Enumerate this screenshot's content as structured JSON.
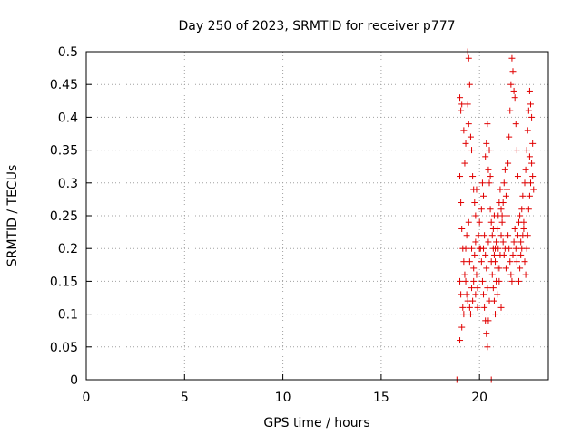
{
  "chart_data": {
    "type": "scatter",
    "title": "Day 250 of 2023, SRMTID for receiver p777",
    "xlabel": "GPS time / hours",
    "ylabel": "SRMTID / TECUs",
    "xlim": [
      0,
      23.5
    ],
    "ylim": [
      0,
      0.5
    ],
    "xticks": [
      "0",
      "5",
      "10",
      "15",
      "20"
    ],
    "yticks": [
      "0",
      "0.05",
      "0.1",
      "0.15",
      "0.2",
      "0.25",
      "0.3",
      "0.35",
      "0.4",
      "0.45",
      "0.5"
    ],
    "grid": true,
    "marker": "+",
    "color": "#e00000",
    "series": [
      {
        "name": "SRMTID",
        "points": [
          [
            18.85,
            0.0
          ],
          [
            18.9,
            0.0
          ],
          [
            20.6,
            0.0
          ],
          [
            19.0,
            0.43
          ],
          [
            19.05,
            0.41
          ],
          [
            19.1,
            0.42
          ],
          [
            19.2,
            0.38
          ],
          [
            19.3,
            0.36
          ],
          [
            19.25,
            0.33
          ],
          [
            19.4,
            0.5
          ],
          [
            19.45,
            0.49
          ],
          [
            19.5,
            0.45
          ],
          [
            19.4,
            0.42
          ],
          [
            19.45,
            0.39
          ],
          [
            19.55,
            0.37
          ],
          [
            19.6,
            0.35
          ],
          [
            19.65,
            0.31
          ],
          [
            19.7,
            0.29
          ],
          [
            19.75,
            0.27
          ],
          [
            19.8,
            0.25
          ],
          [
            19.85,
            0.29
          ],
          [
            19.0,
            0.31
          ],
          [
            19.05,
            0.27
          ],
          [
            19.1,
            0.23
          ],
          [
            19.15,
            0.2
          ],
          [
            19.2,
            0.18
          ],
          [
            19.25,
            0.16
          ],
          [
            19.3,
            0.15
          ],
          [
            19.35,
            0.13
          ],
          [
            19.4,
            0.12
          ],
          [
            19.5,
            0.11
          ],
          [
            19.55,
            0.1
          ],
          [
            19.6,
            0.14
          ],
          [
            19.65,
            0.12
          ],
          [
            19.7,
            0.17
          ],
          [
            19.75,
            0.19
          ],
          [
            19.8,
            0.21
          ],
          [
            19.85,
            0.16
          ],
          [
            19.9,
            0.14
          ],
          [
            19.95,
            0.22
          ],
          [
            20.0,
            0.24
          ],
          [
            20.05,
            0.2
          ],
          [
            20.1,
            0.18
          ],
          [
            20.15,
            0.15
          ],
          [
            20.2,
            0.13
          ],
          [
            20.25,
            0.11
          ],
          [
            20.3,
            0.09
          ],
          [
            20.35,
            0.07
          ],
          [
            20.4,
            0.05
          ],
          [
            20.45,
            0.09
          ],
          [
            20.5,
            0.12
          ],
          [
            19.0,
            0.15
          ],
          [
            19.05,
            0.13
          ],
          [
            19.1,
            0.08
          ],
          [
            19.0,
            0.06
          ],
          [
            19.15,
            0.11
          ],
          [
            19.2,
            0.1
          ],
          [
            19.3,
            0.2
          ],
          [
            19.35,
            0.22
          ],
          [
            19.45,
            0.24
          ],
          [
            19.5,
            0.18
          ],
          [
            19.6,
            0.2
          ],
          [
            19.7,
            0.15
          ],
          [
            19.8,
            0.13
          ],
          [
            19.9,
            0.11
          ],
          [
            20.0,
            0.2
          ],
          [
            20.1,
            0.26
          ],
          [
            20.15,
            0.3
          ],
          [
            20.2,
            0.28
          ],
          [
            20.3,
            0.34
          ],
          [
            20.35,
            0.36
          ],
          [
            20.4,
            0.39
          ],
          [
            20.45,
            0.32
          ],
          [
            20.5,
            0.3
          ],
          [
            20.55,
            0.26
          ],
          [
            20.6,
            0.24
          ],
          [
            20.65,
            0.22
          ],
          [
            20.7,
            0.2
          ],
          [
            20.75,
            0.19
          ],
          [
            20.8,
            0.18
          ],
          [
            20.85,
            0.21
          ],
          [
            20.9,
            0.23
          ],
          [
            20.95,
            0.2
          ],
          [
            21.0,
            0.17
          ],
          [
            21.05,
            0.19
          ],
          [
            21.1,
            0.22
          ],
          [
            21.15,
            0.25
          ],
          [
            21.2,
            0.27
          ],
          [
            21.25,
            0.3
          ],
          [
            21.3,
            0.32
          ],
          [
            21.35,
            0.28
          ],
          [
            21.4,
            0.25
          ],
          [
            21.45,
            0.22
          ],
          [
            21.5,
            0.2
          ],
          [
            21.55,
            0.18
          ],
          [
            21.6,
            0.16
          ],
          [
            21.65,
            0.15
          ],
          [
            21.7,
            0.19
          ],
          [
            21.75,
            0.21
          ],
          [
            21.8,
            0.23
          ],
          [
            21.85,
            0.2
          ],
          [
            21.9,
            0.18
          ],
          [
            21.95,
            0.22
          ],
          [
            22.0,
            0.24
          ],
          [
            22.05,
            0.25
          ],
          [
            22.1,
            0.21
          ],
          [
            22.15,
            0.2
          ],
          [
            22.2,
            0.22
          ],
          [
            22.25,
            0.24
          ],
          [
            22.3,
            0.3
          ],
          [
            22.35,
            0.32
          ],
          [
            22.4,
            0.35
          ],
          [
            22.45,
            0.38
          ],
          [
            22.5,
            0.41
          ],
          [
            22.55,
            0.44
          ],
          [
            22.6,
            0.42
          ],
          [
            22.65,
            0.33
          ],
          [
            22.7,
            0.31
          ],
          [
            22.75,
            0.29
          ],
          [
            22.7,
            0.36
          ],
          [
            22.65,
            0.4
          ],
          [
            22.6,
            0.3
          ],
          [
            22.55,
            0.28
          ],
          [
            21.65,
            0.49
          ],
          [
            21.7,
            0.47
          ],
          [
            21.75,
            0.44
          ],
          [
            21.8,
            0.43
          ],
          [
            21.85,
            0.39
          ],
          [
            21.9,
            0.35
          ],
          [
            21.95,
            0.31
          ],
          [
            21.6,
            0.45
          ],
          [
            21.55,
            0.41
          ],
          [
            21.5,
            0.37
          ],
          [
            21.45,
            0.33
          ],
          [
            21.4,
            0.29
          ],
          [
            20.5,
            0.35
          ],
          [
            20.55,
            0.31
          ],
          [
            20.6,
            0.18
          ],
          [
            20.65,
            0.16
          ],
          [
            20.7,
            0.14
          ],
          [
            20.75,
            0.12
          ],
          [
            20.8,
            0.1
          ],
          [
            20.85,
            0.15
          ],
          [
            20.9,
            0.17
          ],
          [
            20.95,
            0.25
          ],
          [
            21.0,
            0.27
          ],
          [
            21.05,
            0.29
          ],
          [
            21.1,
            0.26
          ],
          [
            21.15,
            0.24
          ],
          [
            21.2,
            0.21
          ],
          [
            21.25,
            0.19
          ],
          [
            21.3,
            0.2
          ],
          [
            21.35,
            0.17
          ],
          [
            22.0,
            0.15
          ],
          [
            22.05,
            0.17
          ],
          [
            22.1,
            0.19
          ],
          [
            22.15,
            0.26
          ],
          [
            22.2,
            0.28
          ],
          [
            22.25,
            0.23
          ],
          [
            22.3,
            0.18
          ],
          [
            22.35,
            0.16
          ],
          [
            22.4,
            0.2
          ],
          [
            22.45,
            0.22
          ],
          [
            22.5,
            0.26
          ],
          [
            22.55,
            0.34
          ],
          [
            20.2,
            0.2
          ],
          [
            20.25,
            0.22
          ],
          [
            20.3,
            0.19
          ],
          [
            20.35,
            0.17
          ],
          [
            20.4,
            0.14
          ],
          [
            20.45,
            0.21
          ],
          [
            20.7,
            0.23
          ],
          [
            20.75,
            0.25
          ],
          [
            20.8,
            0.2
          ],
          [
            20.9,
            0.13
          ],
          [
            21.0,
            0.15
          ],
          [
            21.1,
            0.11
          ]
        ]
      }
    ]
  }
}
